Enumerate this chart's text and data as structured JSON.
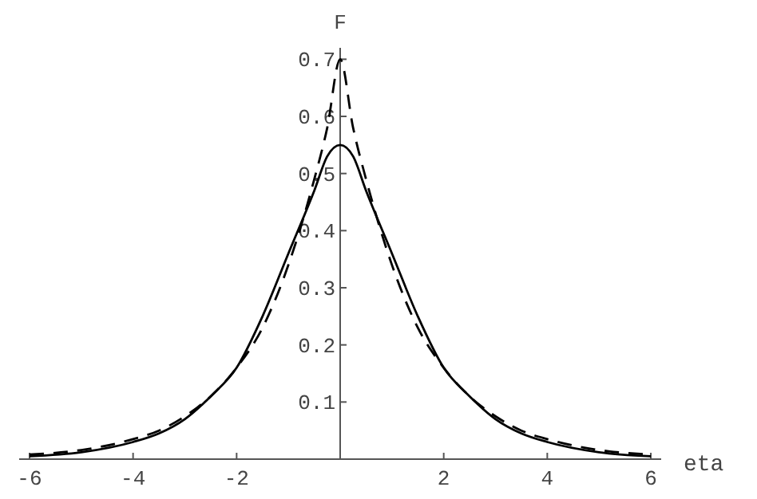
{
  "chart_data": {
    "type": "line",
    "xlabel": "eta",
    "ylabel": "F",
    "xlim": [
      -6.2,
      6.2
    ],
    "ylim": [
      0,
      0.72
    ],
    "xticks": [
      -6,
      -4,
      -2,
      2,
      4,
      6
    ],
    "yticks": [
      0.1,
      0.2,
      0.3,
      0.4,
      0.5,
      0.6,
      0.7
    ],
    "grid": false,
    "marker": "none",
    "x": [
      -6,
      -5,
      -4,
      -3.5,
      -3,
      -2.5,
      -2,
      -1.5,
      -1,
      -0.5,
      -0.25,
      0,
      0.25,
      0.5,
      1,
      1.5,
      2,
      2.5,
      3,
      3.5,
      4,
      5,
      6
    ],
    "series": [
      {
        "color": "#000000",
        "line_style": "solid",
        "values": [
          0.005,
          0.012,
          0.03,
          0.045,
          0.07,
          0.11,
          0.16,
          0.25,
          0.36,
          0.47,
          0.53,
          0.55,
          0.53,
          0.47,
          0.36,
          0.25,
          0.16,
          0.11,
          0.07,
          0.045,
          0.03,
          0.012,
          0.005
        ]
      },
      {
        "color": "#000000",
        "line_style": "dashed",
        "values": [
          0.008,
          0.016,
          0.035,
          0.05,
          0.075,
          0.11,
          0.16,
          0.23,
          0.34,
          0.49,
          0.58,
          0.7,
          0.58,
          0.49,
          0.34,
          0.23,
          0.16,
          0.11,
          0.075,
          0.05,
          0.035,
          0.016,
          0.008
        ]
      }
    ]
  }
}
